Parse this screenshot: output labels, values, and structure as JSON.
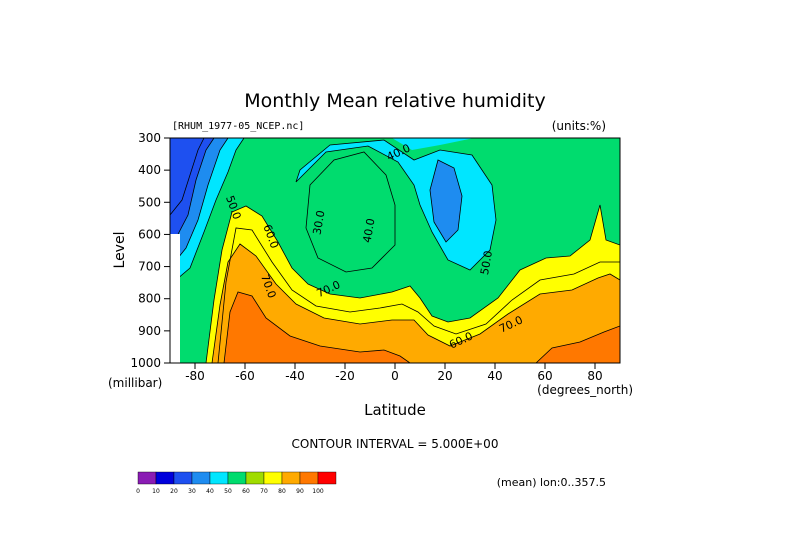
{
  "chart_data": {
    "type": "heatmap",
    "title": "Monthly Mean relative humidity",
    "dataset_label": "[RHUM_1977-05_NCEP.nc]",
    "units_label": "(units:%)",
    "xlabel": "Latitude",
    "x_units": "(degrees_north)",
    "ylabel": "Level",
    "y_units": "(millibar)",
    "xlim": [
      -90,
      90
    ],
    "ylim": [
      1000,
      300
    ],
    "y_reversed": true,
    "x_tick_labels": [
      "-80",
      "-60",
      "-40",
      "-20",
      "0",
      "20",
      "40",
      "60",
      "80"
    ],
    "x_ticks": [
      -80,
      -60,
      -40,
      -20,
      0,
      20,
      40,
      60,
      80
    ],
    "y_tick_labels": [
      "300",
      "400",
      "500",
      "600",
      "700",
      "800",
      "900",
      "1000"
    ],
    "y_ticks": [
      300,
      400,
      500,
      600,
      700,
      800,
      900,
      1000
    ],
    "contour_interval_text": "CONTOUR INTERVAL = 5.000E+00",
    "footnote": "(mean) lon:0..357.5",
    "contour_labels": [
      {
        "text": "40.0",
        "lat": 2,
        "level": 355
      },
      {
        "text": "30.0",
        "lat": -29,
        "level": 565
      },
      {
        "text": "40.0",
        "lat": -9,
        "level": 590
      },
      {
        "text": "50.0",
        "lat": -66,
        "level": 520
      },
      {
        "text": "60.0",
        "lat": -51,
        "level": 610
      },
      {
        "text": "70.0",
        "lat": -52,
        "level": 765
      },
      {
        "text": "70.0",
        "lat": -26,
        "level": 780
      },
      {
        "text": "50.0",
        "lat": 38,
        "level": 690
      },
      {
        "text": "60.0",
        "lat": 27,
        "level": 940
      },
      {
        "text": "70.0",
        "lat": 47,
        "level": 890
      }
    ],
    "colorbar": {
      "ticks": [
        "0",
        "10",
        "20",
        "30",
        "40",
        "50",
        "60",
        "70",
        "80",
        "90",
        "100"
      ],
      "colors": [
        "#8a1cb4",
        "#0000dc",
        "#1e50f0",
        "#1e8cf0",
        "#00e6ff",
        "#00dc6e",
        "#a0dc00",
        "#ffff00",
        "#ffaa00",
        "#ff7800",
        "#ff0000"
      ]
    },
    "bands": [
      {
        "range": "<30",
        "color": "#1e50f0"
      },
      {
        "range": "30-40",
        "color": "#1e8cf0"
      },
      {
        "range": "40-50",
        "color": "#00e6ff"
      },
      {
        "range": "50-60",
        "color": "#00dc6e"
      },
      {
        "range": "60-70",
        "color": "#ffff00"
      },
      {
        "range": "70-80",
        "color": "#ffaa00"
      },
      {
        "range": ">=80",
        "color": "#ff7800"
      }
    ]
  }
}
